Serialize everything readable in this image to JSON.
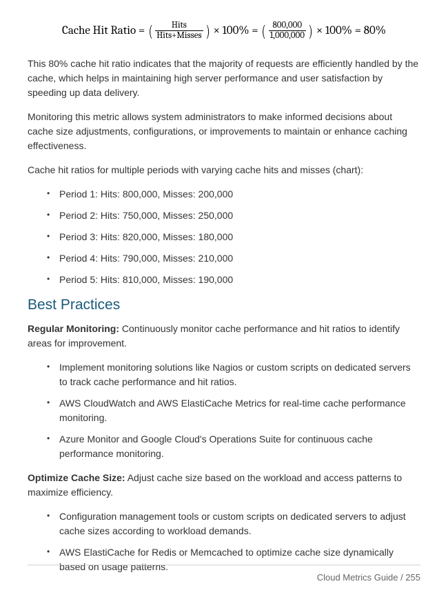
{
  "formula": {
    "label": "Cache Hit Ratio",
    "eq": " = ",
    "frac1_num": "Hits",
    "frac1_den": "Hits+Misses",
    "times100": " × 100% = ",
    "frac2_num": "800,000",
    "frac2_den": "1,000,000",
    "times100_2": " × 100% = 80%"
  },
  "para1": "This 80% cache hit ratio indicates that the majority of requests are efficiently handled by the cache, which helps in maintaining high server performance and user satisfaction by speeding up data delivery.",
  "para2": "Monitoring this metric allows system administrators to make informed decisions about cache size adjustments, configurations, or improvements to maintain or enhance caching effectiveness.",
  "para3": "Cache hit ratios for multiple periods with varying cache hits and misses (chart):",
  "periods": {
    "p1": "Period 1: Hits: 800,000, Misses: 200,000",
    "p2": "Period 2: Hits: 750,000, Misses: 250,000",
    "p3": "Period 3: Hits: 820,000, Misses: 180,000",
    "p4": "Period 4: Hits: 790,000, Misses: 210,000",
    "p5": "Period 5: Hits: 810,000, Misses: 190,000"
  },
  "heading": "Best Practices",
  "bp1": {
    "title": "Regular Monitoring:",
    "text": " Continuously monitor cache performance and hit ratios to identify areas for improvement.",
    "items": {
      "i1": "Implement monitoring solutions like Nagios or custom scripts on dedicated servers to track cache performance and hit ratios.",
      "i2": "AWS CloudWatch and AWS ElastiCache Metrics for real-time cache performance monitoring.",
      "i3": "Azure Monitor and Google Cloud's Operations Suite for continuous cache performance monitoring."
    }
  },
  "bp2": {
    "title": "Optimize Cache Size:",
    "text": " Adjust cache size based on the workload and access patterns to maximize efficiency.",
    "items": {
      "i1": "Configuration management tools or custom scripts on dedicated servers to adjust cache sizes according to workload demands.",
      "i2": "AWS ElastiCache for Redis or Memcached to optimize cache size dynamically based on usage patterns."
    }
  },
  "footer": "Cloud Metrics Guide / 255"
}
